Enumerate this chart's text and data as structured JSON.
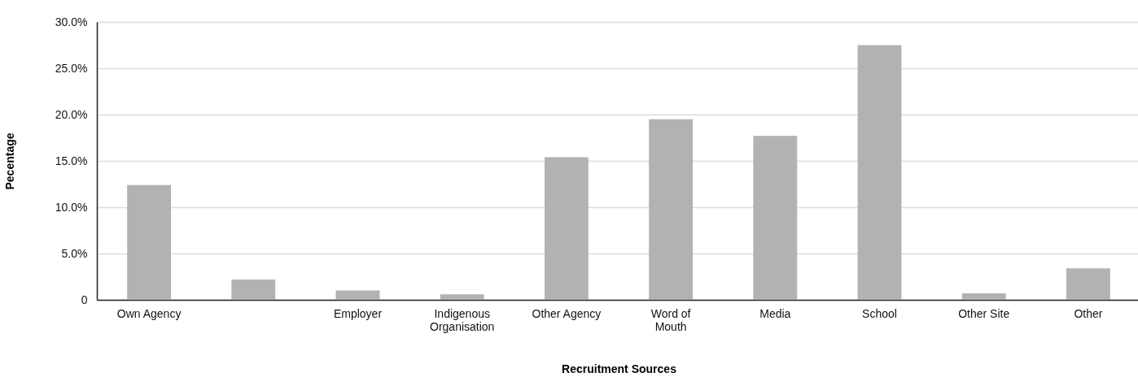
{
  "chart_data": {
    "type": "bar",
    "xlabel": "Recruitment Sources",
    "ylabel": "Pecentage",
    "categories": [
      "Own Agency",
      null,
      "Employer",
      "Indigenous Organisation",
      "Other Agency",
      "Word of Mouth",
      "Media",
      "School",
      "Other Site",
      "Other"
    ],
    "values": [
      12.4,
      2.2,
      1.0,
      0.6,
      15.4,
      19.5,
      17.7,
      27.5,
      0.7,
      3.4
    ],
    "color": "#b1b2b4",
    "ylim": [
      0,
      30
    ],
    "yticks": [
      0,
      {
        "value": 5,
        "label": "5.0%"
      },
      {
        "value": 10,
        "label": "10.0%"
      },
      {
        "value": 15,
        "label": "15.0%"
      },
      {
        "value": 20,
        "label": "20.0%"
      },
      {
        "value": 25,
        "label": "25.0%"
      },
      {
        "value": 30,
        "label": "30.0%"
      }
    ],
    "grid": "y"
  }
}
